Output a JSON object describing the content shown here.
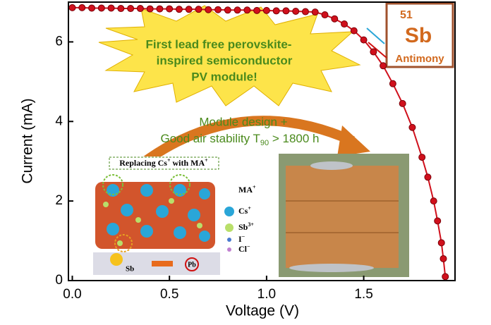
{
  "chart_data": {
    "type": "line",
    "x_label": "Voltage (V)",
    "y_label": "Current (mA)",
    "x": [
      0,
      0.05,
      0.1,
      0.15,
      0.2,
      0.25,
      0.3,
      0.35,
      0.4,
      0.45,
      0.5,
      0.55,
      0.6,
      0.65,
      0.7,
      0.75,
      0.8,
      0.85,
      0.9,
      0.95,
      1.0,
      1.05,
      1.1,
      1.15,
      1.2,
      1.25,
      1.3,
      1.35,
      1.4,
      1.45,
      1.5,
      1.55,
      1.6,
      1.65,
      1.7,
      1.75,
      1.8,
      1.83,
      1.86,
      1.88,
      1.9,
      1.91,
      1.92
    ],
    "values": [
      6.86,
      6.86,
      6.85,
      6.85,
      6.85,
      6.84,
      6.84,
      6.84,
      6.83,
      6.83,
      6.83,
      6.82,
      6.82,
      6.82,
      6.81,
      6.81,
      6.8,
      6.8,
      6.8,
      6.79,
      6.79,
      6.78,
      6.78,
      6.77,
      6.76,
      6.75,
      6.68,
      6.58,
      6.45,
      6.28,
      6.05,
      5.75,
      5.4,
      4.95,
      4.45,
      3.85,
      3.1,
      2.6,
      2.0,
      1.5,
      0.95,
      0.55,
      0.1
    ],
    "color": "#d0101c",
    "xlim": [
      -0.02,
      1.97
    ],
    "ylim": [
      0,
      7.0
    ],
    "xticks": [
      {
        "value": 0,
        "label": "0.0"
      },
      0.5,
      {
        "value": 1,
        "label": "1.0"
      },
      1.5
    ],
    "yticks": [
      0,
      2,
      4,
      6
    ],
    "annotations": {
      "burst": [
        "First lead free perovskite-",
        "inspired semiconductor",
        "PV module!"
      ],
      "design": "Module design +",
      "stability": {
        "text": "Good air stability T",
        "sub": "90",
        "rest": " > 1800 h"
      },
      "element": {
        "number": "51",
        "symbol": "Sb",
        "name": "Antimony"
      },
      "inset": {
        "title": "Replacing Cs",
        "title_sup": "+",
        "title_mid": " with MA",
        "title_sup2": "+",
        "legend": [
          {
            "label": "MA",
            "sup": "+"
          },
          {
            "label": "Cs",
            "sup": "+"
          },
          {
            "label": "Sb",
            "sup": "3+"
          },
          {
            "label": "I",
            "sup": "−"
          },
          {
            "label": "Cl",
            "sup": "−"
          }
        ],
        "sb": "Sb",
        "pb": "Pb"
      }
    }
  }
}
